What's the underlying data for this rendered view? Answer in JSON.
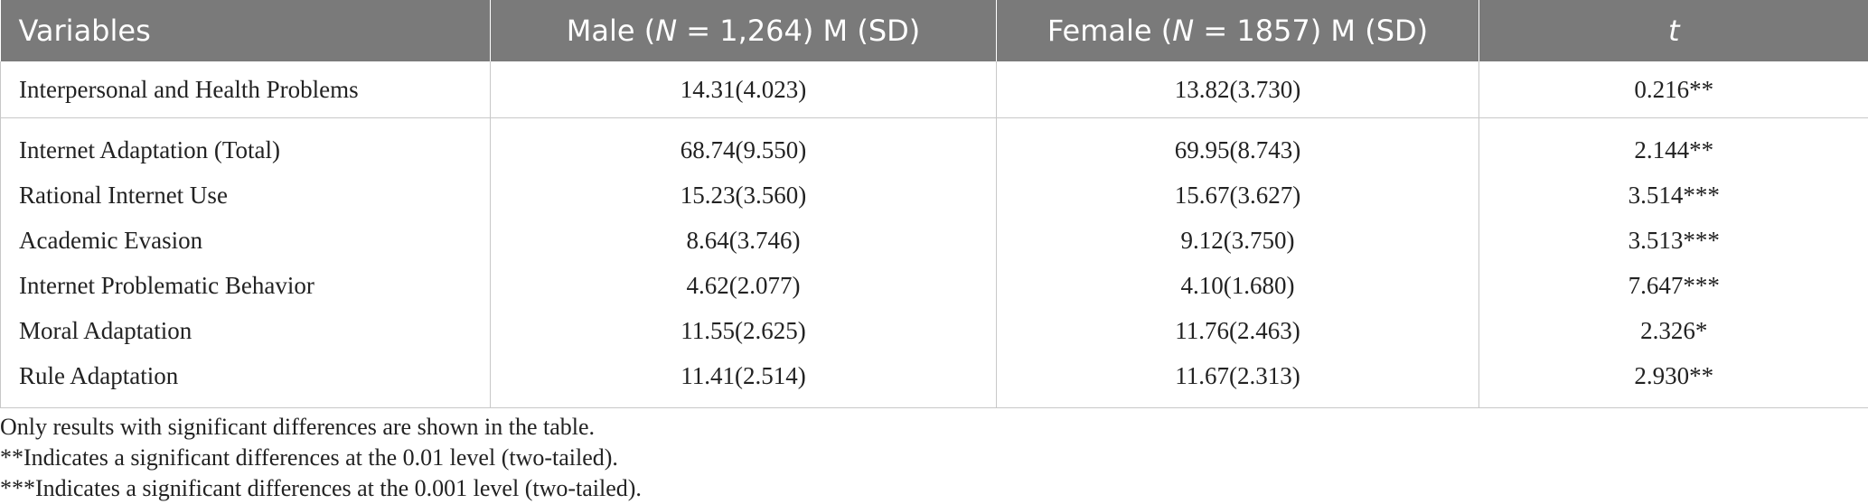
{
  "table": {
    "headers": [
      {
        "pre": "Variables",
        "it": "",
        "post": ""
      },
      {
        "pre": "Male (",
        "it": "N",
        "post": " = 1,264) M (SD)"
      },
      {
        "pre": "Female (",
        "it": "N",
        "post": " = 1857) M (SD)"
      },
      {
        "pre": "",
        "it": "t",
        "post": ""
      }
    ],
    "rows": [
      [
        "Interpersonal and Health Problems",
        "14.31(4.023)",
        "13.82(3.730)",
        "0.216**"
      ],
      [
        "Internet Adaptation (Total)",
        "68.74(9.550)",
        "69.95(8.743)",
        "2.144**"
      ],
      [
        "Rational Internet Use",
        "15.23(3.560)",
        "15.67(3.627)",
        "3.514***"
      ],
      [
        "Academic Evasion",
        "8.64(3.746)",
        "9.12(3.750)",
        "3.513***"
      ],
      [
        "Internet Problematic Behavior",
        "4.62(2.077)",
        "4.10(1.680)",
        "7.647***"
      ],
      [
        "Moral Adaptation",
        "11.55(2.625)",
        "11.76(2.463)",
        "2.326*"
      ],
      [
        "Rule Adaptation",
        "11.41(2.514)",
        "11.67(2.313)",
        "2.930**"
      ]
    ]
  },
  "footnotes": [
    "Only results with significant differences are shown in the table.",
    "**Indicates a significant differences at the 0.01 level (two-tailed).",
    "***Indicates a significant differences at the 0.001 level (two-tailed)."
  ],
  "colors": {
    "header_bg": "#7a7a7a",
    "header_text": "#ffffff",
    "rule": "#c8c8c8"
  }
}
